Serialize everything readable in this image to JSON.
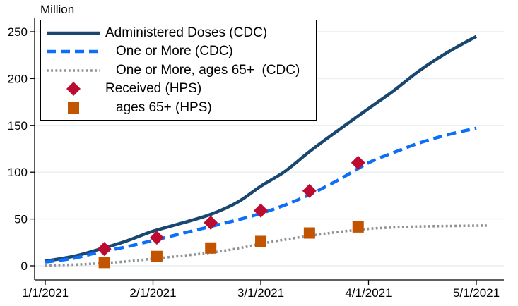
{
  "chart_data": {
    "type": "line",
    "axis_title": "Million",
    "x_tick_labels": [
      "1/1/2021",
      "2/1/2021",
      "3/1/2021",
      "4/1/2021",
      "5/1/2021"
    ],
    "y_ticks": [
      0,
      50,
      100,
      150,
      200,
      250
    ],
    "ylim": [
      0,
      265
    ],
    "xlim": [
      "1/1/2021",
      "5/1/2021"
    ],
    "grid": true,
    "legend_position": "top-left",
    "colors": {
      "navy": "#1a476f",
      "blue": "#0d6ef7",
      "gray": "#8f9396",
      "cranberry": "#bd0a30",
      "rust": "#c25400",
      "grid": "#e8eef2",
      "axis": "#000000"
    },
    "series": [
      {
        "name": "Administered Doses (CDC)",
        "kind": "line",
        "dash": "solid",
        "color_key": "navy",
        "indent": false,
        "points": [
          [
            "1/1",
            5
          ],
          [
            "1/9",
            10
          ],
          [
            "1/16",
            17
          ],
          [
            "1/24",
            26
          ],
          [
            "2/1",
            37
          ],
          [
            "2/8",
            45
          ],
          [
            "2/16",
            55
          ],
          [
            "2/23",
            68
          ],
          [
            "3/1",
            85
          ],
          [
            "3/8",
            101
          ],
          [
            "3/15",
            122
          ],
          [
            "3/23",
            144
          ],
          [
            "4/1",
            168
          ],
          [
            "4/8",
            187
          ],
          [
            "4/15",
            208
          ],
          [
            "4/23",
            228
          ],
          [
            "5/1",
            245
          ]
        ]
      },
      {
        "name": "One or More (CDC)",
        "kind": "line",
        "dash": "dashed",
        "color_key": "blue",
        "indent": true,
        "points": [
          [
            "1/1",
            4
          ],
          [
            "1/9",
            8
          ],
          [
            "1/16",
            14
          ],
          [
            "1/24",
            20
          ],
          [
            "2/1",
            27
          ],
          [
            "2/8",
            34
          ],
          [
            "2/16",
            42
          ],
          [
            "2/23",
            49
          ],
          [
            "3/1",
            56
          ],
          [
            "3/8",
            65
          ],
          [
            "3/15",
            76
          ],
          [
            "3/23",
            91
          ],
          [
            "4/1",
            110
          ],
          [
            "4/8",
            121
          ],
          [
            "4/15",
            131
          ],
          [
            "4/23",
            140
          ],
          [
            "5/1",
            147
          ]
        ]
      },
      {
        "name": "One or More, ages 65+  (CDC)",
        "kind": "line",
        "dash": "dotted",
        "color_key": "gray",
        "indent": true,
        "points": [
          [
            "1/1",
            0.5
          ],
          [
            "1/9",
            1.2
          ],
          [
            "1/16",
            2.5
          ],
          [
            "1/24",
            4.5
          ],
          [
            "2/1",
            7.5
          ],
          [
            "2/8",
            10.5
          ],
          [
            "2/16",
            14
          ],
          [
            "2/23",
            18.5
          ],
          [
            "3/1",
            23.5
          ],
          [
            "3/8",
            28
          ],
          [
            "3/15",
            32
          ],
          [
            "3/23",
            36
          ],
          [
            "4/1",
            39.5
          ],
          [
            "4/8",
            41
          ],
          [
            "4/15",
            42
          ],
          [
            "4/23",
            42.5
          ],
          [
            "5/4",
            43
          ]
        ]
      },
      {
        "name": "Received (HPS)",
        "kind": "scatter",
        "marker": "diamond",
        "color_key": "cranberry",
        "indent": false,
        "points": [
          [
            "1/18",
            18
          ],
          [
            "2/2",
            30
          ],
          [
            "2/16",
            46
          ],
          [
            "3/1",
            59
          ],
          [
            "3/15",
            80
          ],
          [
            "3/29",
            110
          ]
        ]
      },
      {
        "name": "ages 65+ (HPS)",
        "kind": "scatter",
        "marker": "square",
        "color_key": "rust",
        "indent": true,
        "points": [
          [
            "1/18",
            3.5
          ],
          [
            "2/2",
            10
          ],
          [
            "2/16",
            19
          ],
          [
            "3/1",
            26
          ],
          [
            "3/15",
            35
          ],
          [
            "3/29",
            41.5
          ]
        ]
      }
    ]
  }
}
